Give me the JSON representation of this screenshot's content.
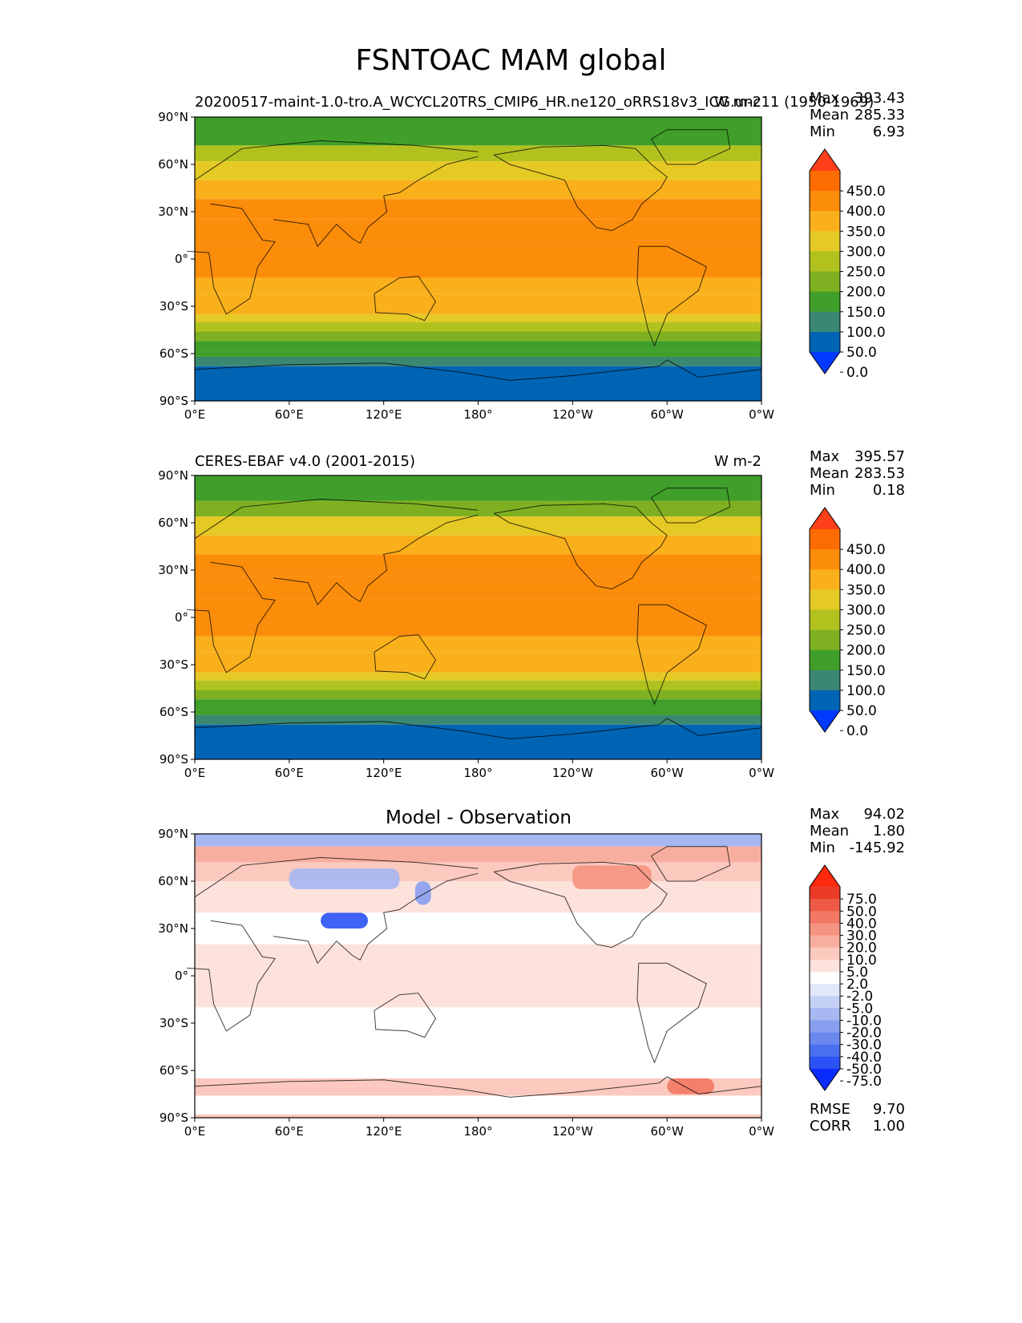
{
  "title": "FSNTOAC MAM global",
  "panels": [
    {
      "title_left": "20200517-maint-1.0-tro.A_WCYCL20TRS_CMIP6_HR.ne120_oRRS18v3_ICG.unc11 (1950-1969)",
      "title_center": "",
      "title_right": "W m-2",
      "stats": [
        {
          "label": "Max",
          "value": "393.43"
        },
        {
          "label": "Mean",
          "value": "285.33"
        },
        {
          "label": "Min",
          "value": "6.93"
        }
      ],
      "extra_stats": []
    },
    {
      "title_left": "CERES-EBAF v4.0 (2001-2015)",
      "title_center": "",
      "title_right": "W m-2",
      "stats": [
        {
          "label": "Max",
          "value": "395.57"
        },
        {
          "label": "Mean",
          "value": "283.53"
        },
        {
          "label": "Min",
          "value": "0.18"
        }
      ],
      "extra_stats": []
    },
    {
      "title_left": "",
      "title_center": "Model - Observation",
      "title_right": "",
      "stats": [
        {
          "label": "Max",
          "value": "94.02"
        },
        {
          "label": "Mean",
          "value": "1.80"
        },
        {
          "label": "Min",
          "value": "-145.92"
        }
      ],
      "extra_stats": [
        {
          "label": "RMSE",
          "value": "9.70"
        },
        {
          "label": "CORR",
          "value": "1.00"
        }
      ]
    }
  ],
  "chart_data": [
    {
      "type": "heatmap",
      "title": "20200517-maint-1.0-tro.A_WCYCL20TRS_CMIP6_HR.ne120_oRRS18v3_ICG.unc11 (1950-1969)",
      "units": "W m-2",
      "xlabel": "",
      "ylabel": "",
      "x_ticks": [
        "0°E",
        "60°E",
        "120°E",
        "180°",
        "120°W",
        "60°W",
        "0°W"
      ],
      "y_ticks": [
        "90°N",
        "60°N",
        "30°N",
        "0°",
        "30°S",
        "60°S",
        "90°S"
      ],
      "xlim": [
        0,
        360
      ],
      "ylim": [
        -90,
        90
      ],
      "colorbar_levels": [
        "450.0",
        "400.0",
        "350.0",
        "300.0",
        "250.0",
        "200.0",
        "150.0",
        "100.0",
        "50.0",
        "0.0"
      ],
      "colors": [
        "#0039ff",
        "#0064b4",
        "#3a8871",
        "#3f9f2a",
        "#7fb022",
        "#b1c21f",
        "#e5c924",
        "#f9b01b",
        "#fc8d0b",
        "#fd6c00",
        "#ff3e1a"
      ],
      "zonal_bands": [
        {
          "lat": [
            72,
            90
          ],
          "value": 120
        },
        {
          "lat": [
            62,
            72
          ],
          "value": 200
        },
        {
          "lat": [
            50,
            62
          ],
          "value": 280
        },
        {
          "lat": [
            38,
            50
          ],
          "value": 320
        },
        {
          "lat": [
            25,
            38
          ],
          "value": 360
        },
        {
          "lat": [
            12,
            25
          ],
          "value": 375
        },
        {
          "lat": [
            -12,
            12
          ],
          "value": 380
        },
        {
          "lat": [
            -22,
            -12
          ],
          "value": 345
        },
        {
          "lat": [
            -35,
            -22
          ],
          "value": 300
        },
        {
          "lat": [
            -40,
            -35
          ],
          "value": 255
        },
        {
          "lat": [
            -46,
            -40
          ],
          "value": 210
        },
        {
          "lat": [
            -52,
            -46
          ],
          "value": 175
        },
        {
          "lat": [
            -58,
            -52
          ],
          "value": 135
        },
        {
          "lat": [
            -62,
            -58
          ],
          "value": 100
        },
        {
          "lat": [
            -68,
            -62
          ],
          "value": 80
        },
        {
          "lat": [
            -90,
            -68
          ],
          "value": 30
        }
      ],
      "stats": {
        "max": 393.43,
        "mean": 285.33,
        "min": 6.93
      }
    },
    {
      "type": "heatmap",
      "title": "CERES-EBAF v4.0 (2001-2015)",
      "units": "W m-2",
      "xlabel": "",
      "ylabel": "",
      "x_ticks": [
        "0°E",
        "60°E",
        "120°E",
        "180°",
        "120°W",
        "60°W",
        "0°W"
      ],
      "y_ticks": [
        "90°N",
        "60°N",
        "30°N",
        "0°",
        "30°S",
        "60°S",
        "90°S"
      ],
      "xlim": [
        0,
        360
      ],
      "ylim": [
        -90,
        90
      ],
      "colorbar_levels": [
        "450.0",
        "400.0",
        "350.0",
        "300.0",
        "250.0",
        "200.0",
        "150.0",
        "100.0",
        "50.0",
        "0.0"
      ],
      "colors": [
        "#0039ff",
        "#0064b4",
        "#3a8871",
        "#3f9f2a",
        "#7fb022",
        "#b1c21f",
        "#e5c924",
        "#f9b01b",
        "#fc8d0b",
        "#fd6c00",
        "#ff3e1a"
      ],
      "zonal_bands": [
        {
          "lat": [
            74,
            90
          ],
          "value": 110
        },
        {
          "lat": [
            64,
            74
          ],
          "value": 190
        },
        {
          "lat": [
            52,
            64
          ],
          "value": 270
        },
        {
          "lat": [
            40,
            52
          ],
          "value": 315
        },
        {
          "lat": [
            26,
            40
          ],
          "value": 355
        },
        {
          "lat": [
            12,
            26
          ],
          "value": 372
        },
        {
          "lat": [
            -12,
            12
          ],
          "value": 380
        },
        {
          "lat": [
            -22,
            -12
          ],
          "value": 345
        },
        {
          "lat": [
            -35,
            -22
          ],
          "value": 300
        },
        {
          "lat": [
            -40,
            -35
          ],
          "value": 255
        },
        {
          "lat": [
            -46,
            -40
          ],
          "value": 210
        },
        {
          "lat": [
            -52,
            -46
          ],
          "value": 175
        },
        {
          "lat": [
            -58,
            -52
          ],
          "value": 135
        },
        {
          "lat": [
            -62,
            -58
          ],
          "value": 100
        },
        {
          "lat": [
            -68,
            -62
          ],
          "value": 80
        },
        {
          "lat": [
            -90,
            -68
          ],
          "value": 28
        }
      ],
      "stats": {
        "max": 395.57,
        "mean": 283.53,
        "min": 0.18
      }
    },
    {
      "type": "heatmap",
      "title": "Model - Observation",
      "units": "",
      "xlabel": "",
      "ylabel": "",
      "x_ticks": [
        "0°E",
        "60°E",
        "120°E",
        "180°",
        "120°W",
        "60°W",
        "0°W"
      ],
      "y_ticks": [
        "90°N",
        "60°N",
        "30°N",
        "0°",
        "30°S",
        "60°S",
        "90°S"
      ],
      "xlim": [
        0,
        360
      ],
      "ylim": [
        -90,
        90
      ],
      "colorbar_levels": [
        "75.0",
        "50.0",
        "40.0",
        "30.0",
        "20.0",
        "10.0",
        "5.0",
        "2.0",
        "-2.0",
        "-5.0",
        "-10.0",
        "-20.0",
        "-30.0",
        "-40.0",
        "-50.0",
        "-75.0"
      ],
      "colors": [
        "#0a2cff",
        "#2a52f4",
        "#4a6ff0",
        "#6a88ee",
        "#889ff0",
        "#a6b7f2",
        "#c5d0f6",
        "#e2e8fb",
        "#ffffff",
        "#fde2dc",
        "#fbc9bd",
        "#f8ae9f",
        "#f59381",
        "#f27764",
        "#ee5a46",
        "#ea3b28",
        "#ff2a0d"
      ],
      "zonal_bands": [
        {
          "lat": [
            82,
            90
          ],
          "value": -20
        },
        {
          "lat": [
            72,
            82
          ],
          "value": 12
        },
        {
          "lat": [
            60,
            72
          ],
          "value": 6
        },
        {
          "lat": [
            40,
            60
          ],
          "value": 4
        },
        {
          "lat": [
            20,
            40
          ],
          "value": 1
        },
        {
          "lat": [
            -20,
            20
          ],
          "value": 4
        },
        {
          "lat": [
            -55,
            -20
          ],
          "value": 1
        },
        {
          "lat": [
            -65,
            -55
          ],
          "value": 0
        },
        {
          "lat": [
            -76,
            -65
          ],
          "value": 8
        },
        {
          "lat": [
            -88,
            -76
          ],
          "value": 1
        },
        {
          "lat": [
            -90,
            -88
          ],
          "value": 5
        }
      ],
      "regions": [
        {
          "lon": [
            80,
            110
          ],
          "lat": [
            30,
            40
          ],
          "value": -60
        },
        {
          "lon": [
            60,
            130
          ],
          "lat": [
            55,
            68
          ],
          "value": -15
        },
        {
          "lon": [
            140,
            150
          ],
          "lat": [
            45,
            60
          ],
          "value": -30
        },
        {
          "lon": [
            240,
            290
          ],
          "lat": [
            55,
            70
          ],
          "value": 25
        },
        {
          "lon": [
            300,
            330
          ],
          "lat": [
            -75,
            -65
          ],
          "value": 30
        }
      ],
      "stats": {
        "max": 94.02,
        "mean": 1.8,
        "min": -145.92,
        "rmse": 9.7,
        "corr": 1.0
      }
    }
  ]
}
